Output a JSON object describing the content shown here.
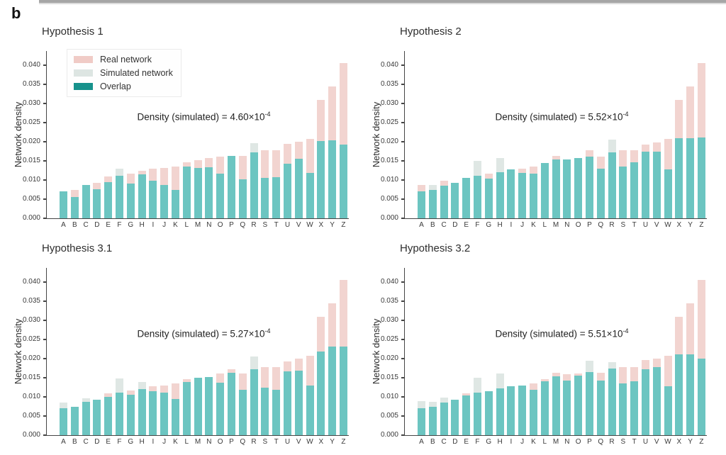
{
  "figure_label": "b",
  "ylabel": "Network density",
  "ytick_labels": [
    "0.000",
    "0.005",
    "0.010",
    "0.015",
    "0.020",
    "0.025",
    "0.030",
    "0.035",
    "0.040"
  ],
  "categories": [
    "A",
    "B",
    "C",
    "D",
    "E",
    "F",
    "G",
    "H",
    "I",
    "J",
    "K",
    "L",
    "M",
    "N",
    "O",
    "P",
    "Q",
    "R",
    "S",
    "T",
    "U",
    "V",
    "W",
    "X",
    "Y",
    "Z"
  ],
  "legend": {
    "items": [
      {
        "name": "real-network",
        "label": "Real network",
        "color": "#f0cbc6"
      },
      {
        "name": "simulated-network",
        "label": "Simulated network",
        "color": "#dde5e2"
      },
      {
        "name": "overlap",
        "label": "Overlap",
        "color": "#17928c"
      }
    ]
  },
  "colors": {
    "real_fill": "#f2d4d0",
    "simulated_fill": "#dfe7e4",
    "overlap_fill": "#6cc5c1",
    "axis": "#454545",
    "text": "#2e2e2e"
  },
  "chart_data": [
    {
      "type": "bar",
      "title": "Hypothesis 1",
      "annotation": {
        "text": "Density (simulated) = 4.60",
        "power": "×10",
        "exponent": "-4",
        "label": "Density (simulated) = 4.60×10⁻⁴"
      },
      "xlabel": "",
      "ylabel": "Network density",
      "ylim": [
        0,
        0.0437
      ],
      "legend_position": "upper left",
      "grid": false,
      "categories": [
        "A",
        "B",
        "C",
        "D",
        "E",
        "F",
        "G",
        "H",
        "I",
        "J",
        "K",
        "L",
        "M",
        "N",
        "O",
        "P",
        "Q",
        "R",
        "S",
        "T",
        "U",
        "V",
        "W",
        "X",
        "Y",
        "Z"
      ],
      "series": [
        {
          "name": "Real network",
          "values": [
            0.0071,
            0.0074,
            0.0088,
            0.0092,
            0.011,
            0.0112,
            0.0117,
            0.0124,
            0.0129,
            0.0131,
            0.0135,
            0.0146,
            0.0152,
            0.0158,
            0.0161,
            0.0163,
            0.0163,
            0.0173,
            0.0178,
            0.0177,
            0.0195,
            0.02,
            0.0207,
            0.031,
            0.0345,
            0.0405
          ]
        },
        {
          "name": "Simulated network",
          "values": [
            0.0071,
            0.0056,
            0.0088,
            0.0076,
            0.0094,
            0.013,
            0.0091,
            0.0114,
            0.0099,
            0.0088,
            0.0075,
            0.0135,
            0.0131,
            0.0133,
            0.0116,
            0.0163,
            0.0102,
            0.0197,
            0.0106,
            0.0108,
            0.0143,
            0.0155,
            0.0119,
            0.0202,
            0.0203,
            0.0192
          ]
        }
      ]
    },
    {
      "type": "bar",
      "title": "Hypothesis 2",
      "annotation": {
        "text": "Density (simulated) = 5.52",
        "power": "×10",
        "exponent": "-4",
        "label": "Density (simulated) = 5.52×10⁻⁴"
      },
      "xlabel": "",
      "ylabel": "Network density",
      "ylim": [
        0,
        0.0437
      ],
      "grid": false,
      "categories": [
        "A",
        "B",
        "C",
        "D",
        "E",
        "F",
        "G",
        "H",
        "I",
        "J",
        "K",
        "L",
        "M",
        "N",
        "O",
        "P",
        "Q",
        "R",
        "S",
        "T",
        "U",
        "V",
        "W",
        "X",
        "Y",
        "Z"
      ],
      "series": [
        {
          "name": "Real network",
          "values": [
            0.0087,
            0.0075,
            0.0099,
            0.0092,
            0.0105,
            0.0111,
            0.0117,
            0.0121,
            0.0128,
            0.013,
            0.0135,
            0.0144,
            0.0163,
            0.0154,
            0.0158,
            0.0178,
            0.0162,
            0.0173,
            0.0177,
            0.0178,
            0.0193,
            0.0199,
            0.0207,
            0.031,
            0.0345,
            0.0405
          ]
        },
        {
          "name": "Simulated network",
          "values": [
            0.0071,
            0.0088,
            0.0086,
            0.0092,
            0.0105,
            0.015,
            0.0103,
            0.0158,
            0.0128,
            0.0118,
            0.0117,
            0.0144,
            0.0153,
            0.0154,
            0.0158,
            0.0161,
            0.0129,
            0.0206,
            0.0135,
            0.0146,
            0.0175,
            0.0175,
            0.0128,
            0.021,
            0.021,
            0.0212
          ]
        }
      ]
    },
    {
      "type": "bar",
      "title": "Hypothesis 3.1",
      "annotation": {
        "text": "Density (simulated) = 5.27",
        "power": "×10",
        "exponent": "-4",
        "label": "Density (simulated) = 5.27×10⁻⁴"
      },
      "xlabel": "",
      "ylabel": "Network density",
      "ylim": [
        0,
        0.0437
      ],
      "grid": false,
      "categories": [
        "A",
        "B",
        "C",
        "D",
        "E",
        "F",
        "G",
        "H",
        "I",
        "J",
        "K",
        "L",
        "M",
        "N",
        "O",
        "P",
        "Q",
        "R",
        "S",
        "T",
        "U",
        "V",
        "W",
        "X",
        "Y",
        "Z"
      ],
      "series": [
        {
          "name": "Real network",
          "values": [
            0.007,
            0.0074,
            0.0088,
            0.0092,
            0.011,
            0.0112,
            0.0117,
            0.0121,
            0.0128,
            0.0129,
            0.0135,
            0.0146,
            0.015,
            0.0152,
            0.0161,
            0.0172,
            0.0162,
            0.0173,
            0.0177,
            0.0177,
            0.0193,
            0.02,
            0.0207,
            0.031,
            0.0345,
            0.0405
          ]
        },
        {
          "name": "Simulated network",
          "values": [
            0.0086,
            0.0074,
            0.0097,
            0.0092,
            0.01,
            0.0148,
            0.0106,
            0.0139,
            0.0114,
            0.0112,
            0.0095,
            0.0139,
            0.015,
            0.0152,
            0.0138,
            0.0163,
            0.0118,
            0.0206,
            0.0124,
            0.0118,
            0.0166,
            0.0169,
            0.0129,
            0.0219,
            0.0232,
            0.0232
          ]
        }
      ]
    },
    {
      "type": "bar",
      "title": "Hypothesis 3.2",
      "annotation": {
        "text": "Density (simulated) = 5.51",
        "power": "×10",
        "exponent": "-4",
        "label": "Density (simulated) = 5.51×10⁻⁴"
      },
      "xlabel": "",
      "ylabel": "Network density",
      "ylim": [
        0,
        0.0437
      ],
      "grid": false,
      "categories": [
        "A",
        "B",
        "C",
        "D",
        "E",
        "F",
        "G",
        "H",
        "I",
        "J",
        "K",
        "L",
        "M",
        "N",
        "O",
        "P",
        "Q",
        "R",
        "S",
        "T",
        "U",
        "V",
        "W",
        "X",
        "Y",
        "Z"
      ],
      "series": [
        {
          "name": "Real network",
          "values": [
            0.0071,
            0.0075,
            0.0086,
            0.0092,
            0.0109,
            0.0111,
            0.0114,
            0.0122,
            0.0128,
            0.0129,
            0.0135,
            0.0147,
            0.0164,
            0.016,
            0.0162,
            0.0164,
            0.0164,
            0.0175,
            0.0178,
            0.0178,
            0.0196,
            0.0201,
            0.0207,
            0.031,
            0.0345,
            0.0405
          ]
        },
        {
          "name": "Simulated network",
          "values": [
            0.0089,
            0.0087,
            0.0098,
            0.0092,
            0.0103,
            0.015,
            0.0114,
            0.0161,
            0.0128,
            0.0129,
            0.0118,
            0.014,
            0.0153,
            0.0143,
            0.0155,
            0.0194,
            0.0143,
            0.019,
            0.0135,
            0.0141,
            0.0172,
            0.0178,
            0.0128,
            0.0211,
            0.0212,
            0.02
          ]
        }
      ]
    }
  ]
}
